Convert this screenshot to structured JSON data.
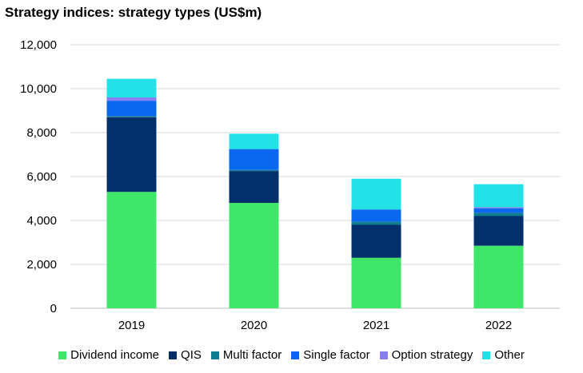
{
  "chart_data": {
    "type": "bar",
    "stacked": true,
    "title": "Strategy indices: strategy types (US$m)",
    "xlabel": "",
    "ylabel": "",
    "categories": [
      "2019",
      "2020",
      "2021",
      "2022"
    ],
    "ylim": [
      0,
      12000
    ],
    "yticks": [
      0,
      2000,
      4000,
      6000,
      8000,
      10000,
      12000
    ],
    "ytick_labels": [
      "0",
      "2,000",
      "4,000",
      "6,000",
      "8,000",
      "10,000",
      "12,000"
    ],
    "grid": true,
    "legend_position": "bottom",
    "series": [
      {
        "name": "Dividend income",
        "color": "#3ee66a",
        "values": [
          5300,
          4800,
          2300,
          2850
        ]
      },
      {
        "name": "QIS",
        "color": "#032f6b",
        "values": [
          3400,
          1450,
          1500,
          1350
        ]
      },
      {
        "name": "Multi factor",
        "color": "#0f7d8f",
        "values": [
          50,
          50,
          150,
          150
        ]
      },
      {
        "name": "Single factor",
        "color": "#0a68f0",
        "values": [
          700,
          950,
          550,
          200
        ]
      },
      {
        "name": "Option strategy",
        "color": "#8b7ef0",
        "values": [
          150,
          0,
          0,
          50
        ]
      },
      {
        "name": "Other",
        "color": "#22e2e8",
        "values": [
          850,
          700,
          1400,
          1050
        ]
      }
    ]
  }
}
